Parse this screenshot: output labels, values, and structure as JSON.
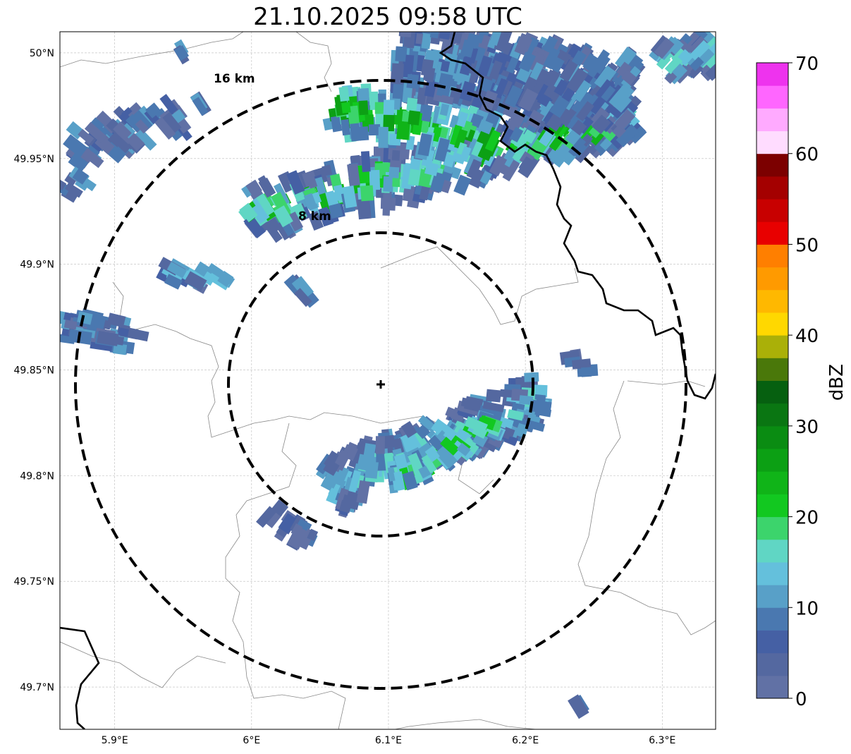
{
  "title": "21.10.2025 09:58 UTC",
  "map": {
    "lon_ticks": [
      {
        "value": 5.9,
        "label": "5.9°E"
      },
      {
        "value": 6.0,
        "label": "6°E"
      },
      {
        "value": 6.1,
        "label": "6.1°E"
      },
      {
        "value": 6.2,
        "label": "6.2°E"
      },
      {
        "value": 6.3,
        "label": "6.3°E"
      }
    ],
    "lat_ticks": [
      {
        "value": 50.0,
        "label": "50°N"
      },
      {
        "value": 49.95,
        "label": "49.95°N"
      },
      {
        "value": 49.9,
        "label": "49.9°N"
      },
      {
        "value": 49.85,
        "label": "49.85°N"
      },
      {
        "value": 49.8,
        "label": "49.8°N"
      },
      {
        "value": 49.75,
        "label": "49.75°N"
      },
      {
        "value": 49.7,
        "label": "49.7°N"
      }
    ],
    "lon_range": [
      5.86,
      6.339
    ],
    "lat_range": [
      49.68,
      50.01
    ],
    "radar_center": {
      "lon": 6.094,
      "lat": 49.843
    },
    "range_rings": [
      {
        "km": 8,
        "label": "8 km"
      },
      {
        "km": 16,
        "label": "16 km"
      }
    ]
  },
  "colorbar": {
    "label": "dBZ",
    "min": 0,
    "max": 70,
    "step": 2.5,
    "ticks": [
      "0",
      "10",
      "20",
      "30",
      "40",
      "50",
      "60",
      "70"
    ],
    "colors": [
      "#6171a5",
      "#5468a0",
      "#4560a4",
      "#4a78b0",
      "#58a0c8",
      "#64c0dc",
      "#60d6c4",
      "#3cd46c",
      "#12c820",
      "#10b418",
      "#0ca014",
      "#0a8c12",
      "#0a7612",
      "#066010",
      "#4a780a",
      "#aab008",
      "#ffd800",
      "#ffb800",
      "#ff9a00",
      "#ff7f00",
      "#e80000",
      "#c80000",
      "#a40000",
      "#7c0000",
      "#ffdcff",
      "#ffaaff",
      "#ff66ff",
      "#ee33ee"
    ]
  }
}
